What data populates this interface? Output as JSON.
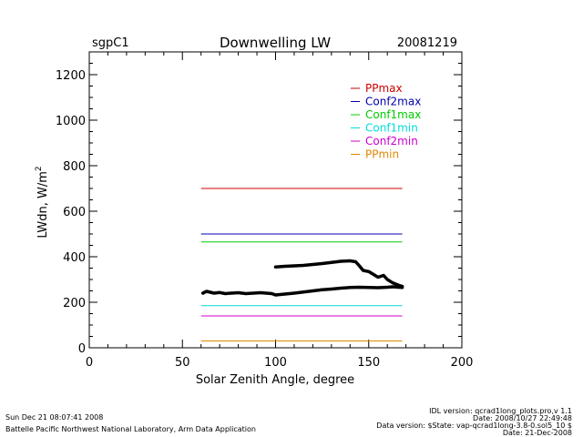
{
  "header": {
    "site": "sgpC1",
    "title": "Downwelling LW",
    "date": "20081219"
  },
  "footer": {
    "left_line1": "Sun Dec 21 08:07:41 2008",
    "left_line2": "Battelle Pacific Northwest National Laboratory, Arm Data Application",
    "right_line1": "IDL version: qcrad1long_plots.pro,v 1.1",
    "right_line2": "Date: 2008/10/27 22:49:48",
    "right_line3": "Data version: $State: vap-qcrad1long-3.8-0.sol5_10 $",
    "right_line4": "Date: 21-Dec-2008"
  },
  "chart_data": {
    "type": "line",
    "title": "Downwelling LW",
    "xlabel": "Solar Zenith Angle, degree",
    "ylabel": "LWdn, W/m",
    "ylabel_sup": "2",
    "xlim": [
      0,
      200
    ],
    "ylim": [
      0,
      1300
    ],
    "x_ticks": [
      0,
      50,
      100,
      150,
      200
    ],
    "y_ticks": [
      0,
      200,
      400,
      600,
      800,
      1000,
      1200
    ],
    "grid": false,
    "legend_position": "top-right",
    "limits": [
      {
        "name": "PPmax",
        "y": 700,
        "x_range": [
          60,
          168
        ],
        "color": "#cc0000"
      },
      {
        "name": "Conf2max",
        "y": 500,
        "x_range": [
          60,
          168
        ],
        "color": "#0000aa"
      },
      {
        "name": "Conf1max",
        "y": 465,
        "x_range": [
          60,
          168
        ],
        "color": "#00cc00"
      },
      {
        "name": "Conf1min",
        "y": 185,
        "x_range": [
          60,
          168
        ],
        "color": "#00dddd"
      },
      {
        "name": "Conf2min",
        "y": 140,
        "x_range": [
          60,
          168
        ],
        "color": "#cc00cc"
      },
      {
        "name": "PPmin",
        "y": 30,
        "x_range": [
          60,
          168
        ],
        "color": "#dd8800"
      }
    ],
    "series": [
      {
        "color": "#000000",
        "x": [
          61,
          63,
          65,
          67,
          70,
          73,
          76,
          80,
          84,
          88,
          92,
          95,
          98,
          100,
          105,
          110,
          115,
          120,
          125,
          130,
          135,
          140,
          145,
          150,
          155,
          160,
          163,
          166,
          168
        ],
        "y": [
          240,
          248,
          244,
          240,
          243,
          238,
          240,
          242,
          238,
          240,
          242,
          240,
          238,
          232,
          236,
          240,
          245,
          250,
          255,
          258,
          262,
          265,
          266,
          265,
          264,
          266,
          268,
          266,
          265
        ]
      },
      {
        "color": "#000000",
        "x": [
          100,
          105,
          110,
          115,
          120,
          125,
          130,
          135,
          140,
          143,
          145,
          147,
          150,
          153,
          155,
          158,
          160,
          163,
          166,
          168
        ],
        "y": [
          355,
          358,
          360,
          362,
          366,
          370,
          375,
          380,
          382,
          378,
          360,
          340,
          335,
          320,
          310,
          318,
          300,
          285,
          275,
          270
        ]
      }
    ]
  }
}
